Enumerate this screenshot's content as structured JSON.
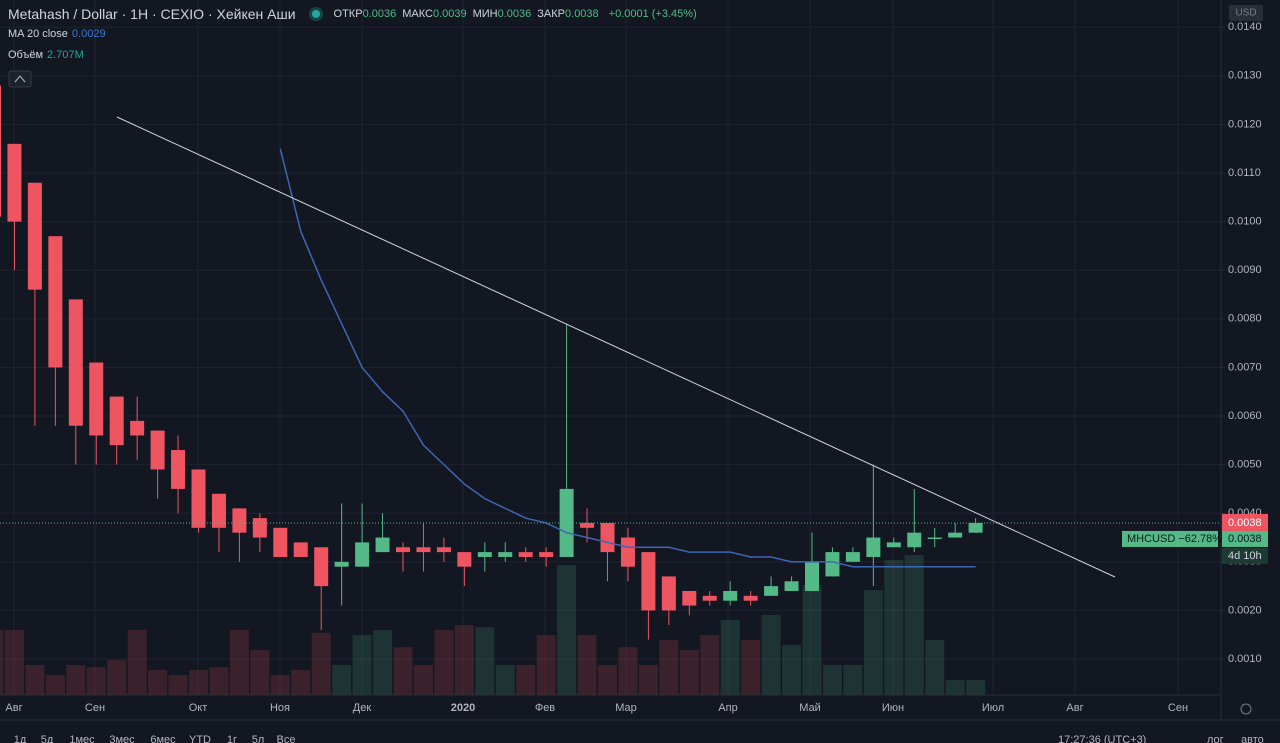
{
  "chart_data": {
    "type": "candlestick",
    "title": "Metahash / Dollar · 1H · CEXIO · Хейкен Аши",
    "ohlc": [
      {
        "label": "ОТКР",
        "value": 0.0036
      },
      {
        "label": "МАКС",
        "value": 0.0039
      },
      {
        "label": "МИН",
        "value": 0.0036
      },
      {
        "label": "ЗАКР",
        "value": 0.0038
      }
    ],
    "change": "+0.0001 (+3.45%)",
    "currency": "USD",
    "up_color": "#53b987",
    "down_color": "#ef5461",
    "open": [
      0.0128,
      0.0116,
      0.0108,
      0.0097,
      0.0084,
      0.0071,
      0.0064,
      0.0059,
      0.0057,
      0.0053,
      0.0049,
      0.0044,
      0.0041,
      0.0039,
      0.0037,
      0.0034,
      0.0033,
      0.0029,
      0.0029,
      0.0032,
      0.0033,
      0.0033,
      0.0033,
      0.0032,
      0.0031,
      0.0031,
      0.0032,
      0.0032,
      0.0031,
      0.0038,
      0.0038,
      0.0035,
      0.0032,
      0.0027,
      0.0024,
      0.0023,
      0.0022,
      0.0023,
      0.0023,
      0.0024,
      0.0024,
      0.0027,
      0.003,
      0.0031,
      0.0033,
      0.0033,
      0.0035,
      0.0035,
      0.0036
    ],
    "high": [
      0.0131,
      0.0116,
      0.0108,
      0.0097,
      0.0084,
      0.0071,
      0.0064,
      0.0064,
      0.0057,
      0.0056,
      0.0049,
      0.0044,
      0.0041,
      0.004,
      0.0037,
      0.0034,
      0.0033,
      0.0042,
      0.0042,
      0.004,
      0.0034,
      0.0038,
      0.0035,
      0.0032,
      0.0034,
      0.0034,
      0.0033,
      0.0033,
      0.0079,
      0.0041,
      0.0038,
      0.0037,
      0.0032,
      0.0027,
      0.0024,
      0.0024,
      0.0026,
      0.0024,
      0.0027,
      0.0027,
      0.0036,
      0.0033,
      0.0033,
      0.005,
      0.0035,
      0.0045,
      0.0037,
      0.0038,
      0.0039
    ],
    "low": [
      0.01,
      0.009,
      0.0058,
      0.0058,
      0.005,
      0.005,
      0.005,
      0.0051,
      0.0043,
      0.004,
      0.0036,
      0.0032,
      0.003,
      0.0032,
      0.0031,
      0.0031,
      0.0016,
      0.0021,
      0.0029,
      0.0032,
      0.0028,
      0.0028,
      0.003,
      0.0025,
      0.0028,
      0.003,
      0.003,
      0.0029,
      0.0031,
      0.0034,
      0.0026,
      0.0026,
      0.0014,
      0.0017,
      0.0019,
      0.0021,
      0.0021,
      0.0021,
      0.0023,
      0.0024,
      0.0024,
      0.0027,
      0.003,
      0.0025,
      0.0033,
      0.0032,
      0.0033,
      0.0035,
      0.0036
    ],
    "close": [
      0.0101,
      0.01,
      0.0086,
      0.007,
      0.0058,
      0.0056,
      0.0054,
      0.0056,
      0.0049,
      0.0045,
      0.0037,
      0.0037,
      0.0036,
      0.0035,
      0.0031,
      0.0031,
      0.0025,
      0.003,
      0.0034,
      0.0035,
      0.0032,
      0.0032,
      0.0032,
      0.0029,
      0.0032,
      0.0032,
      0.0031,
      0.0031,
      0.0045,
      0.0037,
      0.0032,
      0.0029,
      0.002,
      0.002,
      0.0021,
      0.0022,
      0.0024,
      0.0022,
      0.0025,
      0.0026,
      0.003,
      0.0032,
      0.0032,
      0.0035,
      0.0034,
      0.0036,
      0.0035,
      0.0036,
      0.0038
    ],
    "ma": {
      "name": "MA 20 close",
      "last": 0.0029,
      "color": "#3d67b5",
      "values": [
        null,
        null,
        null,
        null,
        null,
        null,
        null,
        null,
        null,
        null,
        null,
        null,
        null,
        null,
        0.0115,
        0.0098,
        0.0088,
        0.0079,
        0.007,
        0.0065,
        0.0061,
        0.0054,
        0.005,
        0.0046,
        0.0043,
        0.0041,
        0.0039,
        0.0038,
        0.0036,
        0.0035,
        0.0034,
        0.0033,
        0.0033,
        0.0033,
        0.0032,
        0.0032,
        0.0032,
        0.0031,
        0.0031,
        0.003,
        0.003,
        0.003,
        0.0029,
        0.0029,
        0.0029,
        0.0029,
        0.0029,
        0.0029,
        0.0029
      ]
    },
    "volume": {
      "name": "Объём",
      "last_label": "2.707M",
      "values": [
        11.7,
        11.7,
        5.4,
        3.6,
        5.4,
        5.0,
        6.3,
        11.7,
        4.5,
        3.6,
        4.5,
        5.0,
        11.7,
        8.1,
        3.6,
        4.5,
        11.2,
        5.4,
        10.8,
        11.7,
        8.6,
        5.4,
        11.7,
        12.6,
        12.2,
        5.4,
        5.4,
        10.8,
        23.4,
        10.8,
        5.4,
        8.6,
        5.4,
        9.9,
        8.1,
        10.8,
        13.5,
        9.9,
        14.4,
        9.0,
        19.8,
        5.4,
        5.4,
        18.9,
        24.3,
        25.2,
        9.9,
        2.7,
        2.707
      ]
    },
    "last_price": 0.0038,
    "symbol_label": "MHCUSD −62.78%",
    "countdown": "4d 10h",
    "ylim": [
      0.00026,
      0.01456
    ],
    "yticks": [
      {
        "value": 0.001,
        "label": "0.0010"
      },
      {
        "value": 0.002,
        "label": "0.0020"
      },
      {
        "value": 0.003,
        "label": "0.0030"
      },
      {
        "value": 0.004,
        "label": "0.0040"
      },
      {
        "value": 0.005,
        "label": "0.0050"
      },
      {
        "value": 0.006,
        "label": "0.0060"
      },
      {
        "value": 0.007,
        "label": "0.0070"
      },
      {
        "value": 0.008,
        "label": "0.0080"
      },
      {
        "value": 0.009,
        "label": "0.0090"
      },
      {
        "value": 0.01,
        "label": "0.0100"
      },
      {
        "value": 0.011,
        "label": "0.0110"
      },
      {
        "value": 0.012,
        "label": "0.0120"
      },
      {
        "value": 0.013,
        "label": "0.0130"
      },
      {
        "value": 0.014,
        "label": "0.0140"
      }
    ],
    "time_labels": [
      "Авг",
      "Сен",
      "Окт",
      "Ноя",
      "Дек",
      "2020",
      "Фев",
      "Мар",
      "Апр",
      "Май",
      "Июн",
      "Июл",
      "Авг",
      "Сен"
    ],
    "grid": true
  },
  "toolbar": {
    "ranges": [
      "1д",
      "5д",
      "1мес",
      "3мес",
      "6мес",
      "YTD",
      "1г",
      "5л",
      "Все"
    ],
    "clock": "17:27:36 (UTC+3)",
    "options": [
      "лог",
      "авто"
    ]
  }
}
